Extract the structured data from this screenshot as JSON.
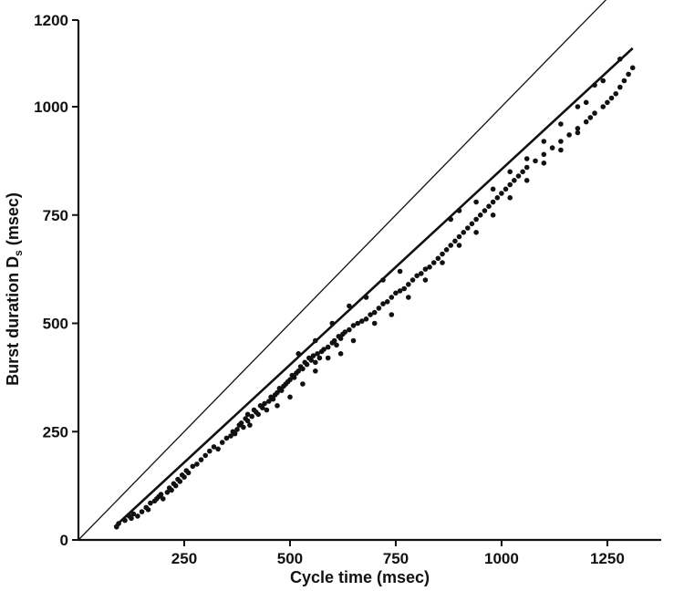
{
  "chart_data": {
    "type": "scatter",
    "title": "",
    "xlabel": "Cycle time (msec)",
    "ylabel": "Burst duration D",
    "ylabel_subscript": "s",
    "ylabel_unit": "(msec)",
    "xlim": [
      0,
      1330
    ],
    "ylim": [
      0,
      1200
    ],
    "x_ticks": [
      250,
      500,
      750,
      1000,
      1250
    ],
    "y_ticks": [
      0,
      250,
      500,
      750,
      1000,
      1200
    ],
    "x_tick_labels": [
      "250",
      "500",
      "750",
      "1000",
      "1250"
    ],
    "y_tick_labels": [
      "0",
      "250",
      "500",
      "750",
      "1000",
      "1200"
    ],
    "grid": false,
    "lines": [
      {
        "kind": "identity",
        "x": [
          0,
          1250
        ],
        "y": [
          0,
          1250
        ]
      },
      {
        "kind": "fit",
        "x": [
          85,
          1310
        ],
        "y": [
          30,
          1135
        ]
      }
    ],
    "points": [
      [
        90,
        30
      ],
      [
        95,
        38
      ],
      [
        110,
        45
      ],
      [
        120,
        55
      ],
      [
        125,
        50
      ],
      [
        130,
        60
      ],
      [
        140,
        55
      ],
      [
        150,
        65
      ],
      [
        160,
        75
      ],
      [
        165,
        70
      ],
      [
        170,
        85
      ],
      [
        180,
        90
      ],
      [
        185,
        95
      ],
      [
        190,
        100
      ],
      [
        195,
        105
      ],
      [
        200,
        95
      ],
      [
        210,
        110
      ],
      [
        215,
        120
      ],
      [
        220,
        115
      ],
      [
        225,
        130
      ],
      [
        230,
        125
      ],
      [
        235,
        140
      ],
      [
        240,
        135
      ],
      [
        245,
        150
      ],
      [
        250,
        145
      ],
      [
        255,
        160
      ],
      [
        260,
        155
      ],
      [
        270,
        170
      ],
      [
        280,
        175
      ],
      [
        290,
        185
      ],
      [
        300,
        195
      ],
      [
        310,
        205
      ],
      [
        320,
        215
      ],
      [
        330,
        210
      ],
      [
        340,
        225
      ],
      [
        350,
        235
      ],
      [
        360,
        240
      ],
      [
        365,
        250
      ],
      [
        370,
        245
      ],
      [
        375,
        255
      ],
      [
        380,
        265
      ],
      [
        385,
        270
      ],
      [
        390,
        260
      ],
      [
        395,
        280
      ],
      [
        400,
        275
      ],
      [
        400,
        290
      ],
      [
        405,
        265
      ],
      [
        410,
        285
      ],
      [
        415,
        300
      ],
      [
        420,
        295
      ],
      [
        425,
        290
      ],
      [
        430,
        310
      ],
      [
        435,
        305
      ],
      [
        440,
        315
      ],
      [
        445,
        300
      ],
      [
        450,
        320
      ],
      [
        455,
        330
      ],
      [
        460,
        325
      ],
      [
        465,
        335
      ],
      [
        470,
        340
      ],
      [
        475,
        350
      ],
      [
        480,
        345
      ],
      [
        485,
        355
      ],
      [
        490,
        360
      ],
      [
        495,
        365
      ],
      [
        500,
        370
      ],
      [
        505,
        380
      ],
      [
        510,
        375
      ],
      [
        515,
        385
      ],
      [
        520,
        390
      ],
      [
        525,
        400
      ],
      [
        530,
        395
      ],
      [
        535,
        410
      ],
      [
        540,
        405
      ],
      [
        545,
        420
      ],
      [
        550,
        415
      ],
      [
        555,
        425
      ],
      [
        560,
        410
      ],
      [
        565,
        430
      ],
      [
        570,
        420
      ],
      [
        575,
        435
      ],
      [
        580,
        440
      ],
      [
        590,
        445
      ],
      [
        600,
        455
      ],
      [
        605,
        460
      ],
      [
        610,
        450
      ],
      [
        615,
        470
      ],
      [
        620,
        465
      ],
      [
        625,
        475
      ],
      [
        630,
        480
      ],
      [
        640,
        485
      ],
      [
        650,
        495
      ],
      [
        660,
        500
      ],
      [
        670,
        505
      ],
      [
        680,
        510
      ],
      [
        690,
        520
      ],
      [
        700,
        525
      ],
      [
        710,
        535
      ],
      [
        720,
        545
      ],
      [
        730,
        550
      ],
      [
        740,
        560
      ],
      [
        750,
        570
      ],
      [
        760,
        575
      ],
      [
        770,
        580
      ],
      [
        780,
        590
      ],
      [
        790,
        600
      ],
      [
        800,
        610
      ],
      [
        810,
        615
      ],
      [
        820,
        625
      ],
      [
        830,
        630
      ],
      [
        840,
        640
      ],
      [
        850,
        650
      ],
      [
        860,
        660
      ],
      [
        870,
        670
      ],
      [
        880,
        680
      ],
      [
        890,
        690
      ],
      [
        900,
        700
      ],
      [
        910,
        710
      ],
      [
        920,
        720
      ],
      [
        930,
        730
      ],
      [
        940,
        740
      ],
      [
        950,
        750
      ],
      [
        960,
        760
      ],
      [
        970,
        770
      ],
      [
        980,
        780
      ],
      [
        990,
        790
      ],
      [
        1000,
        800
      ],
      [
        1010,
        810
      ],
      [
        1020,
        820
      ],
      [
        1030,
        830
      ],
      [
        1040,
        840
      ],
      [
        1050,
        850
      ],
      [
        1060,
        860
      ],
      [
        1080,
        875
      ],
      [
        1100,
        890
      ],
      [
        1120,
        905
      ],
      [
        1140,
        920
      ],
      [
        1160,
        935
      ],
      [
        1180,
        950
      ],
      [
        1200,
        965
      ],
      [
        1210,
        975
      ],
      [
        1220,
        985
      ],
      [
        1240,
        1000
      ],
      [
        1250,
        1010
      ],
      [
        1260,
        1020
      ],
      [
        1270,
        1030
      ],
      [
        1280,
        1045
      ],
      [
        1290,
        1060
      ],
      [
        1300,
        1075
      ],
      [
        1310,
        1090
      ],
      [
        520,
        430
      ],
      [
        560,
        460
      ],
      [
        600,
        500
      ],
      [
        640,
        540
      ],
      [
        680,
        560
      ],
      [
        720,
        600
      ],
      [
        760,
        620
      ],
      [
        880,
        740
      ],
      [
        900,
        760
      ],
      [
        940,
        780
      ],
      [
        980,
        810
      ],
      [
        1020,
        850
      ],
      [
        1060,
        880
      ],
      [
        1100,
        920
      ],
      [
        1140,
        960
      ],
      [
        1180,
        1000
      ],
      [
        1200,
        1010
      ],
      [
        1220,
        1050
      ],
      [
        1240,
        1060
      ],
      [
        1280,
        1110
      ],
      [
        470,
        310
      ],
      [
        500,
        330
      ],
      [
        530,
        360
      ],
      [
        560,
        390
      ],
      [
        590,
        420
      ],
      [
        620,
        430
      ],
      [
        650,
        460
      ],
      [
        700,
        500
      ],
      [
        740,
        520
      ],
      [
        780,
        560
      ],
      [
        820,
        600
      ],
      [
        860,
        640
      ],
      [
        900,
        680
      ],
      [
        940,
        710
      ],
      [
        980,
        750
      ],
      [
        1020,
        790
      ],
      [
        1060,
        830
      ],
      [
        1100,
        870
      ],
      [
        1140,
        900
      ],
      [
        1180,
        940
      ]
    ]
  }
}
